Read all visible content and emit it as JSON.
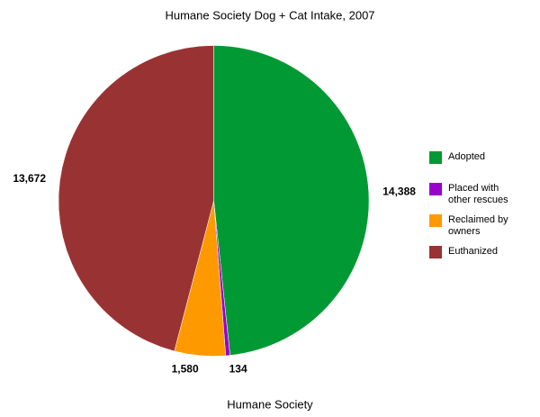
{
  "chart_data": {
    "type": "pie",
    "title": "Humane Society Dog + Cat Intake, 2007",
    "x_label": "Humane Society",
    "categories": [
      "Adopted",
      "Placed with other rescues",
      "Reclaimed by owners",
      "Euthanized"
    ],
    "values": [
      14388,
      134,
      1580,
      13672
    ],
    "value_labels": [
      "14,388",
      "134",
      "1,580",
      "13,672"
    ],
    "colors": [
      "#009933",
      "#9900cc",
      "#ff9900",
      "#993333"
    ],
    "legend": "right"
  }
}
